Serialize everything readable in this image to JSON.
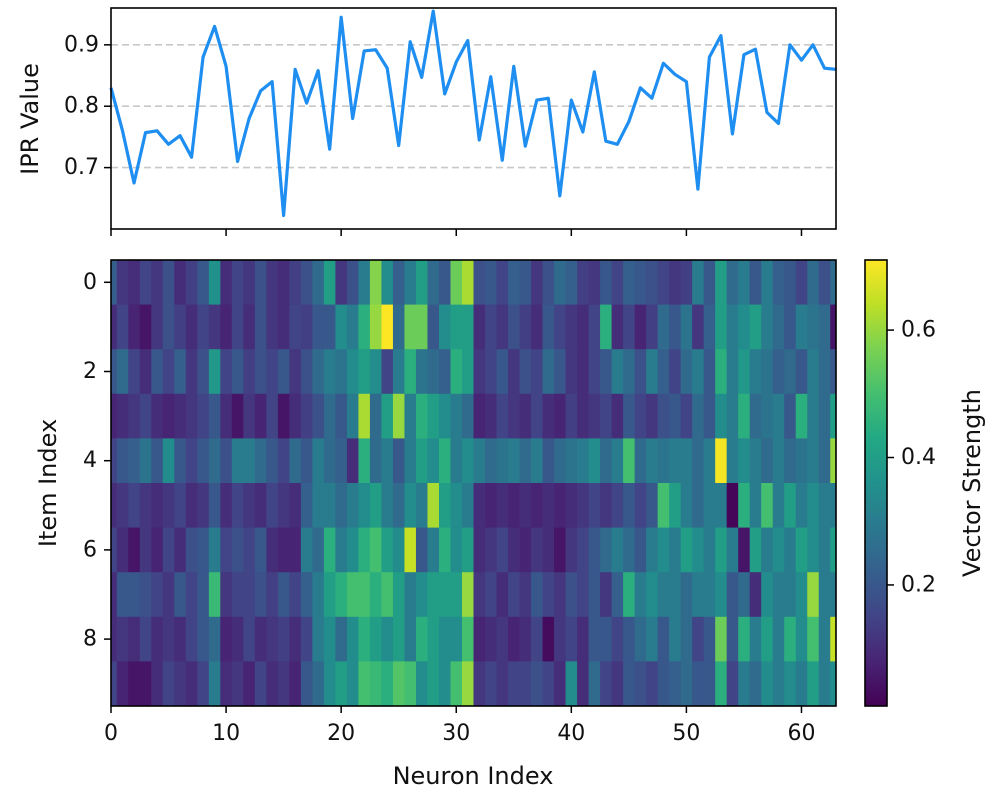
{
  "chart_data": [
    {
      "type": "line",
      "ylabel": "IPR Value",
      "xlabel": "",
      "yticks": [
        0.7,
        0.8,
        0.9
      ],
      "ylim": [
        0.6,
        0.96
      ],
      "xlim": [
        0,
        63
      ],
      "grid": "horizontal-dashed",
      "line_color": "#1f8ef1",
      "x": [
        0,
        1,
        2,
        3,
        4,
        5,
        6,
        7,
        8,
        9,
        10,
        11,
        12,
        13,
        14,
        15,
        16,
        17,
        18,
        19,
        20,
        21,
        22,
        23,
        24,
        25,
        26,
        27,
        28,
        29,
        30,
        31,
        32,
        33,
        34,
        35,
        36,
        37,
        38,
        39,
        40,
        41,
        42,
        43,
        44,
        45,
        46,
        47,
        48,
        49,
        50,
        51,
        52,
        53,
        54,
        55,
        56,
        57,
        58,
        59,
        60,
        61,
        62,
        63
      ],
      "y": [
        0.83,
        0.76,
        0.675,
        0.757,
        0.76,
        0.738,
        0.752,
        0.717,
        0.88,
        0.93,
        0.865,
        0.71,
        0.78,
        0.825,
        0.84,
        0.622,
        0.86,
        0.805,
        0.858,
        0.73,
        0.945,
        0.78,
        0.89,
        0.892,
        0.862,
        0.736,
        0.905,
        0.847,
        0.955,
        0.82,
        0.872,
        0.907,
        0.745,
        0.848,
        0.712,
        0.865,
        0.735,
        0.81,
        0.813,
        0.654,
        0.81,
        0.758,
        0.856,
        0.743,
        0.738,
        0.775,
        0.83,
        0.813,
        0.87,
        0.852,
        0.84,
        0.665,
        0.88,
        0.915,
        0.755,
        0.884,
        0.893,
        0.79,
        0.772,
        0.9,
        0.875,
        0.9,
        0.862,
        0.86
      ]
    },
    {
      "type": "heatmap",
      "xlabel": "Neuron Index",
      "ylabel": "Item Index",
      "xticks": [
        0,
        10,
        20,
        30,
        40,
        50,
        60
      ],
      "yticks": [
        0,
        2,
        4,
        6,
        8
      ],
      "colormap": "viridis",
      "rows": 10,
      "columns": 64,
      "colorbar": {
        "label": "Vector Strength",
        "ticks": [
          0.2,
          0.4,
          0.6
        ],
        "vmin": 0.01,
        "vmax": 0.71
      },
      "values": [
        [
          0.22,
          0.12,
          0.1,
          0.15,
          0.12,
          0.18,
          0.1,
          0.14,
          0.2,
          0.36,
          0.1,
          0.15,
          0.12,
          0.18,
          0.12,
          0.1,
          0.14,
          0.18,
          0.25,
          0.4,
          0.12,
          0.18,
          0.3,
          0.58,
          0.35,
          0.22,
          0.3,
          0.4,
          0.25,
          0.2,
          0.55,
          0.62,
          0.18,
          0.2,
          0.15,
          0.22,
          0.2,
          0.12,
          0.18,
          0.25,
          0.22,
          0.14,
          0.12,
          0.2,
          0.15,
          0.22,
          0.2,
          0.18,
          0.15,
          0.12,
          0.14,
          0.3,
          0.2,
          0.4,
          0.25,
          0.3,
          0.2,
          0.3,
          0.22,
          0.2,
          0.15,
          0.25,
          0.18,
          0.25
        ],
        [
          0.1,
          0.15,
          0.08,
          0.05,
          0.12,
          0.18,
          0.14,
          0.1,
          0.15,
          0.12,
          0.08,
          0.15,
          0.1,
          0.18,
          0.12,
          0.1,
          0.15,
          0.14,
          0.2,
          0.2,
          0.35,
          0.3,
          0.45,
          0.6,
          0.71,
          0.25,
          0.55,
          0.55,
          0.2,
          0.35,
          0.4,
          0.4,
          0.1,
          0.15,
          0.12,
          0.18,
          0.14,
          0.1,
          0.2,
          0.15,
          0.12,
          0.1,
          0.15,
          0.45,
          0.1,
          0.15,
          0.08,
          0.14,
          0.25,
          0.2,
          0.28,
          0.12,
          0.22,
          0.4,
          0.3,
          0.35,
          0.4,
          0.3,
          0.25,
          0.2,
          0.3,
          0.28,
          0.25,
          0.05
        ],
        [
          0.2,
          0.25,
          0.15,
          0.1,
          0.2,
          0.15,
          0.22,
          0.12,
          0.18,
          0.38,
          0.15,
          0.2,
          0.14,
          0.18,
          0.15,
          0.2,
          0.12,
          0.18,
          0.25,
          0.3,
          0.28,
          0.35,
          0.4,
          0.35,
          0.15,
          0.3,
          0.45,
          0.28,
          0.25,
          0.22,
          0.45,
          0.4,
          0.12,
          0.15,
          0.2,
          0.12,
          0.18,
          0.15,
          0.25,
          0.2,
          0.12,
          0.1,
          0.15,
          0.2,
          0.3,
          0.25,
          0.18,
          0.3,
          0.22,
          0.15,
          0.25,
          0.3,
          0.2,
          0.45,
          0.3,
          0.38,
          0.3,
          0.28,
          0.22,
          0.25,
          0.2,
          0.3,
          0.25,
          0.2
        ],
        [
          0.08,
          0.1,
          0.12,
          0.15,
          0.1,
          0.08,
          0.1,
          0.12,
          0.15,
          0.2,
          0.1,
          0.05,
          0.12,
          0.08,
          0.15,
          0.05,
          0.1,
          0.14,
          0.18,
          0.25,
          0.2,
          0.3,
          0.62,
          0.25,
          0.4,
          0.6,
          0.3,
          0.45,
          0.4,
          0.35,
          0.3,
          0.25,
          0.08,
          0.1,
          0.15,
          0.12,
          0.1,
          0.15,
          0.1,
          0.08,
          0.14,
          0.1,
          0.12,
          0.15,
          0.1,
          0.2,
          0.15,
          0.12,
          0.18,
          0.2,
          0.15,
          0.25,
          0.2,
          0.35,
          0.3,
          0.45,
          0.25,
          0.28,
          0.3,
          0.2,
          0.45,
          0.3,
          0.25,
          0.4
        ],
        [
          0.15,
          0.2,
          0.22,
          0.28,
          0.2,
          0.35,
          0.2,
          0.15,
          0.2,
          0.25,
          0.18,
          0.3,
          0.3,
          0.25,
          0.2,
          0.15,
          0.25,
          0.2,
          0.3,
          0.25,
          0.22,
          0.1,
          0.45,
          0.25,
          0.3,
          0.2,
          0.3,
          0.4,
          0.35,
          0.45,
          0.3,
          0.35,
          0.3,
          0.25,
          0.28,
          0.3,
          0.25,
          0.3,
          0.2,
          0.25,
          0.28,
          0.3,
          0.35,
          0.25,
          0.3,
          0.5,
          0.25,
          0.3,
          0.28,
          0.3,
          0.3,
          0.25,
          0.3,
          0.7,
          0.3,
          0.35,
          0.3,
          0.25,
          0.3,
          0.25,
          0.28,
          0.3,
          0.25,
          0.6
        ],
        [
          0.1,
          0.12,
          0.15,
          0.12,
          0.1,
          0.12,
          0.15,
          0.1,
          0.12,
          0.2,
          0.1,
          0.15,
          0.12,
          0.1,
          0.15,
          0.12,
          0.1,
          0.22,
          0.3,
          0.3,
          0.25,
          0.3,
          0.35,
          0.4,
          0.3,
          0.25,
          0.35,
          0.3,
          0.62,
          0.4,
          0.35,
          0.3,
          0.1,
          0.08,
          0.1,
          0.08,
          0.1,
          0.08,
          0.1,
          0.08,
          0.1,
          0.12,
          0.15,
          0.12,
          0.15,
          0.2,
          0.15,
          0.2,
          0.5,
          0.4,
          0.3,
          0.25,
          0.3,
          0.3,
          0.02,
          0.45,
          0.3,
          0.5,
          0.3,
          0.4,
          0.3,
          0.35,
          0.3,
          0.3
        ],
        [
          0.15,
          0.1,
          0.05,
          0.12,
          0.08,
          0.15,
          0.1,
          0.18,
          0.2,
          0.3,
          0.15,
          0.18,
          0.15,
          0.2,
          0.1,
          0.08,
          0.08,
          0.3,
          0.25,
          0.45,
          0.3,
          0.35,
          0.45,
          0.5,
          0.4,
          0.35,
          0.65,
          0.2,
          0.3,
          0.45,
          0.35,
          0.4,
          0.1,
          0.12,
          0.15,
          0.1,
          0.08,
          0.12,
          0.1,
          0.05,
          0.12,
          0.15,
          0.2,
          0.25,
          0.3,
          0.25,
          0.2,
          0.3,
          0.35,
          0.3,
          0.4,
          0.35,
          0.3,
          0.4,
          0.3,
          0.05,
          0.4,
          0.3,
          0.35,
          0.3,
          0.4,
          0.35,
          0.3,
          0.4
        ],
        [
          0.1,
          0.2,
          0.2,
          0.18,
          0.15,
          0.12,
          0.2,
          0.15,
          0.2,
          0.48,
          0.12,
          0.15,
          0.15,
          0.18,
          0.14,
          0.2,
          0.15,
          0.22,
          0.3,
          0.4,
          0.45,
          0.5,
          0.5,
          0.45,
          0.5,
          0.4,
          0.3,
          0.35,
          0.4,
          0.4,
          0.4,
          0.6,
          0.12,
          0.15,
          0.1,
          0.15,
          0.12,
          0.2,
          0.15,
          0.12,
          0.18,
          0.15,
          0.2,
          0.12,
          0.22,
          0.45,
          0.3,
          0.35,
          0.3,
          0.3,
          0.25,
          0.3,
          0.3,
          0.35,
          0.2,
          0.25,
          0.1,
          0.35,
          0.3,
          0.3,
          0.35,
          0.6,
          0.3,
          0.3
        ],
        [
          0.1,
          0.12,
          0.1,
          0.15,
          0.1,
          0.12,
          0.1,
          0.15,
          0.2,
          0.25,
          0.08,
          0.1,
          0.15,
          0.1,
          0.12,
          0.14,
          0.1,
          0.15,
          0.3,
          0.35,
          0.25,
          0.35,
          0.45,
          0.4,
          0.35,
          0.4,
          0.3,
          0.45,
          0.4,
          0.35,
          0.35,
          0.5,
          0.08,
          0.1,
          0.12,
          0.08,
          0.1,
          0.15,
          0.03,
          0.12,
          0.15,
          0.1,
          0.2,
          0.2,
          0.15,
          0.2,
          0.25,
          0.3,
          0.2,
          0.3,
          0.25,
          0.15,
          0.2,
          0.55,
          0.2,
          0.45,
          0.3,
          0.4,
          0.3,
          0.45,
          0.35,
          0.5,
          0.3,
          0.65
        ],
        [
          0.15,
          0.08,
          0.05,
          0.05,
          0.1,
          0.15,
          0.12,
          0.1,
          0.15,
          0.3,
          0.1,
          0.12,
          0.08,
          0.15,
          0.1,
          0.12,
          0.08,
          0.2,
          0.25,
          0.35,
          0.4,
          0.35,
          0.5,
          0.48,
          0.45,
          0.52,
          0.5,
          0.35,
          0.4,
          0.35,
          0.5,
          0.6,
          0.12,
          0.15,
          0.12,
          0.15,
          0.15,
          0.18,
          0.15,
          0.1,
          0.35,
          0.1,
          0.25,
          0.15,
          0.12,
          0.2,
          0.18,
          0.15,
          0.2,
          0.22,
          0.25,
          0.2,
          0.2,
          0.45,
          0.15,
          0.3,
          0.25,
          0.35,
          0.3,
          0.35,
          0.3,
          0.4,
          0.3,
          0.35
        ]
      ]
    }
  ]
}
